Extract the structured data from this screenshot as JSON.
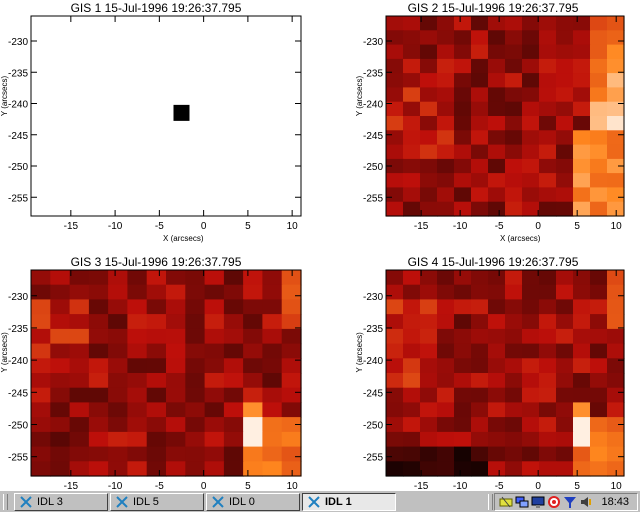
{
  "panels": [
    {
      "title": "GIS 1 15-Jul-1996 19:26:37.795",
      "xlabel": "X (arcsecs)",
      "ylabel": "Y (arcsecs)",
      "xticks": [
        "-15",
        "-10",
        "-5",
        "0",
        "5",
        "10"
      ],
      "yticks": [
        "-230",
        "-235",
        "-240",
        "-245",
        "-250",
        "-255"
      ],
      "image_type": "blank-with-marker",
      "marker": {
        "x": -2.5,
        "y": -241.5
      }
    },
    {
      "title": "GIS 2 15-Jul-1996 19:26:37.795",
      "xlabel": "X (arcsecs)",
      "ylabel": "Y (arcsecs)",
      "xticks": [
        "-15",
        "-10",
        "-5",
        "0",
        "5",
        "10"
      ],
      "yticks": [
        "-230",
        "-235",
        "-240",
        "-245",
        "-250",
        "-255"
      ],
      "image_type": "heatmap",
      "hot_column": "right"
    },
    {
      "title": "GIS 3 15-Jul-1996 19:26:37.795",
      "xlabel": "X (arcsecs)",
      "ylabel": "Y (arcsecs)",
      "xticks": [
        "-15",
        "-10",
        "-5",
        "0",
        "5",
        "10"
      ],
      "yticks": [
        "-230",
        "-235",
        "-240",
        "-245",
        "-250",
        "-255"
      ],
      "image_type": "heatmap",
      "hot_spot": "lower-right"
    },
    {
      "title": "GIS 4 15-Jul-1996 19:26:37.795",
      "xlabel": "X (arcsecs)",
      "ylabel": "Y (arcsecs)",
      "xticks": [
        "-15",
        "-10",
        "-5",
        "0",
        "5",
        "10"
      ],
      "yticks": [
        "-230",
        "-235",
        "-240",
        "-245",
        "-250",
        "-255"
      ],
      "image_type": "heatmap",
      "hot_spot": "lower-right"
    }
  ],
  "taskbar": {
    "buttons": [
      {
        "label": "IDL 3",
        "icon": "idl-icon",
        "active": false
      },
      {
        "label": "IDL 5",
        "icon": "idl-icon",
        "active": false
      },
      {
        "label": "IDL 0",
        "icon": "idl-icon",
        "active": false
      },
      {
        "label": "IDL 1",
        "icon": "idl-icon",
        "active": true
      }
    ],
    "tray_icons": [
      "hardware-icon",
      "network-icon",
      "monitor-icon",
      "target-icon",
      "filter-icon",
      "volume-icon"
    ],
    "clock": "18:43"
  },
  "colors": {
    "taskbar": "#c0c0c0",
    "heat_low": "#000000",
    "heat_mid": "#b01010",
    "heat_high": "#ff9020",
    "heat_max": "#ffffff"
  }
}
